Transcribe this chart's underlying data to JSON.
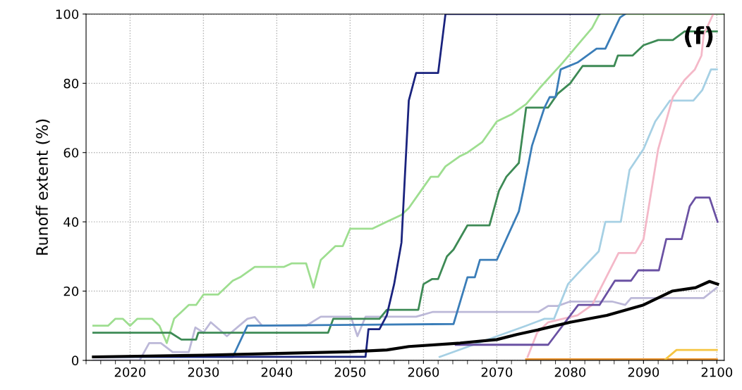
{
  "chart_data": {
    "type": "line",
    "ylabel": "Runoff extent (%)",
    "annotations": [
      "(f)"
    ],
    "xlim": [
      2014,
      2101
    ],
    "ylim": [
      0,
      100
    ],
    "xticks": [
      2020,
      2030,
      2040,
      2050,
      2060,
      2070,
      2080,
      2090,
      2100
    ],
    "yticks": [
      0,
      20,
      40,
      60,
      80,
      100
    ],
    "grid": true,
    "marker": "none",
    "line_style": "solid",
    "series": [
      {
        "color": "#9ede90",
        "x": [
          2015,
          2017,
          2018,
          2019,
          2020,
          2021,
          2023,
          2024,
          2025,
          2026,
          2028,
          2029,
          2030,
          2032,
          2034,
          2035,
          2037,
          2041,
          2042,
          2044,
          2045,
          2046,
          2048,
          2049,
          2050,
          2053,
          2055,
          2057,
          2058,
          2060,
          2061,
          2062,
          2063,
          2065,
          2066,
          2068,
          2069,
          2070,
          2072,
          2074,
          2076,
          2079,
          2081,
          2083,
          2084,
          2101
        ],
        "values": [
          10,
          10,
          12,
          12,
          10,
          12,
          12,
          10,
          5,
          12,
          16,
          16,
          19,
          19,
          23,
          24,
          27,
          27,
          28,
          28,
          21,
          29,
          33,
          33,
          38,
          38,
          40,
          42,
          44,
          50,
          53,
          53,
          56,
          59,
          60,
          63,
          66,
          69,
          71,
          74,
          79,
          86,
          91,
          96,
          100,
          100
        ]
      },
      {
        "color": "#bcb8d8",
        "x": [
          2015,
          2021.3,
          2022.6,
          2024.2,
          2025.8,
          2028,
          2028.9,
          2030,
          2031,
          2033.2,
          2036,
          2037,
          2038,
          2044,
          2046,
          2050.1,
          2051,
          2052.1,
          2059,
          2061.3,
          2075.7,
          2077,
          2078.3,
          2080,
          2085.7,
          2087.5,
          2088.3,
          2098.2,
          2100
        ],
        "values": [
          0,
          0,
          5,
          5,
          2.4,
          2.4,
          9.5,
          8,
          11,
          7,
          12,
          12.5,
          10,
          10,
          12.6,
          12.6,
          7,
          12.6,
          12.6,
          14,
          14,
          15.7,
          15.7,
          17,
          17,
          16,
          18,
          18,
          21
        ]
      },
      {
        "color": "#3d8a55",
        "x": [
          2015,
          2025.5,
          2027,
          2029,
          2029.3,
          2047,
          2047.7,
          2054,
          2055,
          2059.3,
          2060,
          2061.2,
          2062,
          2063.2,
          2064.1,
          2066,
          2069,
          2070.3,
          2071.3,
          2073,
          2074,
          2077,
          2078.3,
          2080,
          2081.7,
          2086,
          2086.5,
          2088.5,
          2090,
          2092,
          2094,
          2095.6,
          2100
        ],
        "values": [
          8,
          8,
          6,
          6,
          8,
          8,
          12,
          12,
          14.6,
          14.6,
          22,
          23.5,
          23.5,
          30,
          32,
          39,
          39,
          49,
          53,
          57,
          73,
          73,
          77,
          80,
          85,
          85,
          88,
          88,
          91,
          92.5,
          92.5,
          95,
          95
        ]
      },
      {
        "color": "#3a7db8",
        "x": [
          2015,
          2034,
          2036,
          2064.1,
          2066,
          2067,
          2067.7,
          2070,
          2073,
          2073.6,
          2074.8,
          2076.5,
          2077.2,
          2078,
          2078.7,
          2081,
          2083.6,
          2084.8,
          2086.8,
          2087.5
        ],
        "values": [
          1,
          1,
          10,
          10.5,
          24,
          24,
          29,
          29,
          43,
          49,
          62,
          73,
          76,
          76,
          84,
          86,
          90,
          90,
          99,
          100
        ]
      },
      {
        "color": "#1a237e",
        "x": [
          2015,
          2052.1,
          2052.5,
          2054,
          2055,
          2056,
          2057,
          2058,
          2059,
          2062,
          2063,
          2084
        ],
        "values": [
          1,
          1,
          9,
          9,
          13,
          22,
          34,
          75,
          83,
          83,
          100,
          100
        ]
      },
      {
        "color": "#a6d0e4",
        "x": [
          2062.2,
          2074,
          2076.5,
          2077.8,
          2079.7,
          2081,
          2083.9,
          2084.8,
          2086.9,
          2088.1,
          2090,
          2091.6,
          2093.6,
          2096.8,
          2098,
          2099.2,
          2100
        ],
        "values": [
          1,
          10,
          12,
          12,
          22,
          25,
          31.5,
          40,
          40,
          55,
          61,
          69,
          75,
          75,
          78,
          84,
          84
        ]
      },
      {
        "color": "#f4b8c8",
        "x": [
          2074.2,
          2075.5,
          2077,
          2079,
          2081,
          2083,
          2086.6,
          2088.9,
          2090,
          2091,
          2092,
          2094,
          2095.6,
          2097,
          2097.9,
          2098.2,
          2099.5
        ],
        "values": [
          1,
          8,
          11,
          12,
          13,
          16,
          31,
          31,
          35,
          48,
          61,
          76,
          81,
          84,
          88,
          94,
          100
        ]
      },
      {
        "color": "#6a51a3",
        "x": [
          2064.4,
          2077,
          2081.1,
          2084,
          2086.1,
          2088.3,
          2089.3,
          2092.1,
          2093.1,
          2095.2,
          2096.3,
          2097.1,
          2099,
          2100.1
        ],
        "values": [
          4.5,
          4.5,
          16,
          16,
          23,
          23,
          26,
          26,
          35,
          35,
          44.5,
          47,
          47,
          40
        ]
      },
      {
        "color": "#e8902a",
        "x": [
          2074,
          2100
        ],
        "values": [
          0.3,
          0.3
        ]
      },
      {
        "color": "#f5c542",
        "x": [
          2093,
          2094.5,
          2100
        ],
        "values": [
          0.3,
          3,
          3
        ]
      },
      {
        "color": "#000000",
        "x": [
          2015,
          2030,
          2040,
          2050,
          2055,
          2058,
          2065,
          2070,
          2072.8,
          2075,
          2080,
          2085,
          2090,
          2093.9,
          2097.1,
          2099,
          2100.1
        ],
        "values": [
          1,
          1.5,
          2,
          2.5,
          3,
          4,
          5,
          6,
          7.5,
          8.5,
          11,
          13,
          16,
          20,
          21,
          22.8,
          22
        ]
      }
    ]
  }
}
